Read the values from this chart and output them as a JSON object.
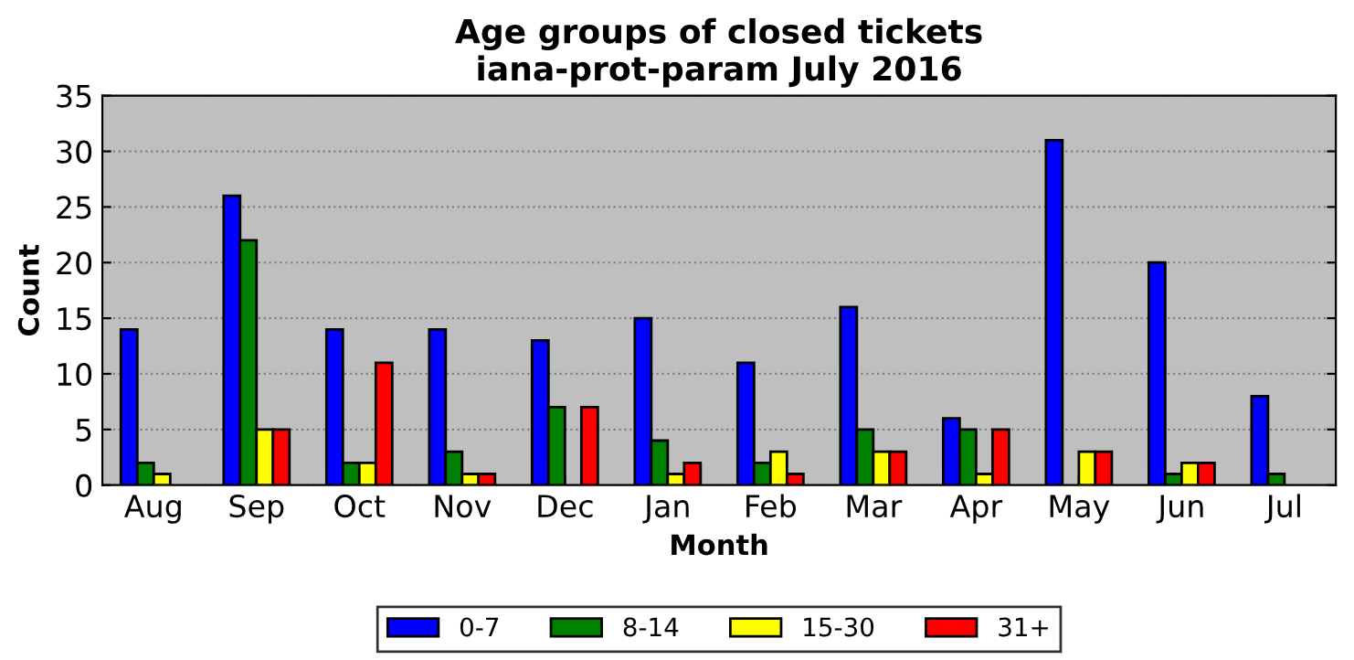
{
  "chart_data": {
    "type": "bar",
    "title": "Age groups of closed tickets\niana-prot-param July 2016",
    "xlabel": "Month",
    "ylabel": "Count",
    "categories": [
      "Aug",
      "Sep",
      "Oct",
      "Nov",
      "Dec",
      "Jan",
      "Feb",
      "Mar",
      "Apr",
      "May",
      "Jun",
      "Jul"
    ],
    "series": [
      {
        "name": "0-7",
        "color": "#0000ff",
        "values": [
          14,
          26,
          14,
          14,
          13,
          15,
          11,
          16,
          6,
          31,
          20,
          8
        ]
      },
      {
        "name": "8-14",
        "color": "#008000",
        "values": [
          2,
          22,
          2,
          3,
          7,
          4,
          2,
          5,
          5,
          0,
          1,
          1
        ]
      },
      {
        "name": "15-30",
        "color": "#ffff00",
        "values": [
          1,
          5,
          2,
          1,
          0,
          1,
          3,
          3,
          1,
          3,
          2,
          0
        ]
      },
      {
        "name": "31+",
        "color": "#ff0000",
        "values": [
          0,
          5,
          11,
          1,
          7,
          2,
          1,
          3,
          5,
          3,
          2,
          0
        ]
      }
    ],
    "ylim": [
      0,
      35
    ],
    "yticks": [
      0,
      5,
      10,
      15,
      20,
      25,
      30,
      35
    ],
    "grid": "y",
    "legend": "bottom"
  }
}
